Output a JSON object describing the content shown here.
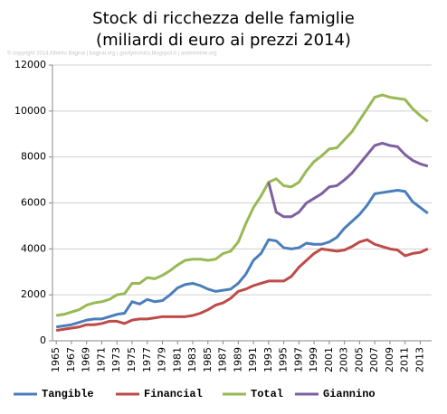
{
  "chart_data": {
    "type": "line",
    "title": "Stock di ricchezza delle famiglie",
    "subtitle": "(miliardi di euro ai prezzi 2014)",
    "watermark": "© copyright 2014 Alberto Bagnai | bagnai.org | goofynomics.blogspot.it | asimmetrie.org",
    "x": [
      1965,
      1966,
      1967,
      1968,
      1969,
      1970,
      1971,
      1972,
      1973,
      1974,
      1975,
      1976,
      1977,
      1978,
      1979,
      1980,
      1981,
      1982,
      1983,
      1984,
      1985,
      1986,
      1987,
      1988,
      1989,
      1990,
      1991,
      1992,
      1993,
      1994,
      1995,
      1996,
      1997,
      1998,
      1999,
      2000,
      2001,
      2002,
      2003,
      2004,
      2005,
      2006,
      2007,
      2008,
      2009,
      2010,
      2011,
      2012,
      2013,
      2014
    ],
    "xlim": [
      1964.5,
      2014.5
    ],
    "xticks": [
      1965,
      1967,
      1969,
      1971,
      1973,
      1975,
      1977,
      1979,
      1981,
      1983,
      1985,
      1987,
      1989,
      1991,
      1993,
      1995,
      1997,
      1999,
      2001,
      2003,
      2005,
      2007,
      2009,
      2011,
      2013
    ],
    "ylim": [
      0,
      12000
    ],
    "yticks": [
      0,
      2000,
      4000,
      6000,
      8000,
      10000,
      12000
    ],
    "grid": true,
    "legend": "bottom",
    "series": [
      {
        "name": "Tangible",
        "color": "#4a7ebb",
        "values": [
          600,
          650,
          700,
          800,
          900,
          950,
          950,
          1050,
          1150,
          1200,
          1700,
          1600,
          1800,
          1700,
          1750,
          2000,
          2300,
          2450,
          2500,
          2400,
          2250,
          2150,
          2200,
          2250,
          2500,
          2900,
          3500,
          3800,
          4400,
          4350,
          4050,
          4000,
          4050,
          4250,
          4200,
          4200,
          4300,
          4500,
          4900,
          5200,
          5500,
          5900,
          6400,
          6450,
          6500,
          6550,
          6500,
          6050,
          5800,
          5550
        ]
      },
      {
        "name": "Financial",
        "color": "#be4b48",
        "values": [
          450,
          500,
          550,
          600,
          700,
          700,
          750,
          850,
          850,
          750,
          900,
          950,
          950,
          1000,
          1050,
          1050,
          1050,
          1050,
          1100,
          1200,
          1350,
          1550,
          1650,
          1850,
          2150,
          2250,
          2400,
          2500,
          2600,
          2600,
          2600,
          2800,
          3200,
          3500,
          3800,
          4000,
          3950,
          3900,
          3950,
          4100,
          4300,
          4400,
          4200,
          4100,
          4000,
          3950,
          3700,
          3800,
          3850,
          4000
        ]
      },
      {
        "name": "Total",
        "color": "#98b954",
        "values": [
          1100,
          1150,
          1250,
          1350,
          1550,
          1650,
          1700,
          1800,
          2000,
          2050,
          2500,
          2500,
          2750,
          2700,
          2850,
          3050,
          3300,
          3500,
          3550,
          3550,
          3500,
          3550,
          3800,
          3900,
          4300,
          5100,
          5800,
          6300,
          6900,
          7050,
          6750,
          6700,
          6900,
          7400,
          7800,
          8050,
          8350,
          8400,
          8750,
          9100,
          9600,
          10100,
          10600,
          10700,
          10600,
          10550,
          10500,
          10100,
          9800,
          9550
        ]
      },
      {
        "name": "Giannino",
        "color": "#7d60a0",
        "values": [
          null,
          null,
          null,
          null,
          null,
          null,
          null,
          null,
          null,
          null,
          null,
          null,
          null,
          null,
          null,
          null,
          null,
          null,
          null,
          null,
          null,
          null,
          null,
          null,
          null,
          null,
          null,
          null,
          6900,
          5600,
          5400,
          5400,
          5600,
          6000,
          6200,
          6400,
          6700,
          6750,
          7000,
          7300,
          7700,
          8100,
          8500,
          8600,
          8500,
          8450,
          8100,
          7850,
          7700,
          7600
        ]
      }
    ]
  }
}
